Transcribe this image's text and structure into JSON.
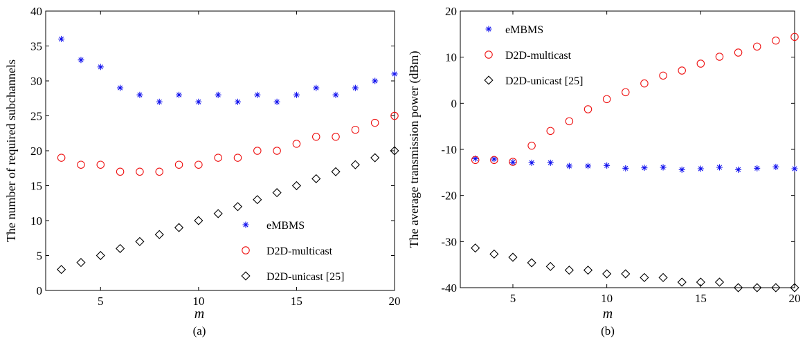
{
  "figure": {
    "caption_a": "(a)",
    "caption_b": "(b)"
  },
  "colors": {
    "embms": "#1010ee",
    "multicast": "#ee1010",
    "unicast": "#000000",
    "axis": "#000000",
    "background": "#ffffff"
  },
  "chart_data": [
    {
      "type": "scatter",
      "panel": "a",
      "xlabel": "m",
      "ylabel": "The number of required subchannels",
      "xlim": [
        2.2,
        20
      ],
      "ylim": [
        0,
        40
      ],
      "xticks": [
        5,
        10,
        15,
        20
      ],
      "yticks": [
        0,
        5,
        10,
        15,
        20,
        25,
        30,
        35,
        40
      ],
      "grid": false,
      "legend_position": "bottom-right",
      "x": [
        3,
        4,
        5,
        6,
        7,
        8,
        9,
        10,
        11,
        12,
        13,
        14,
        15,
        16,
        17,
        18,
        19,
        20
      ],
      "series": [
        {
          "name": "eMBMS",
          "marker": "asterisk",
          "color_key": "embms",
          "values": [
            36,
            33,
            32,
            29,
            28,
            27,
            28,
            27,
            28,
            27,
            28,
            27,
            28,
            29,
            28,
            29,
            30,
            31
          ]
        },
        {
          "name": "D2D-multicast",
          "marker": "circle",
          "color_key": "multicast",
          "values": [
            19,
            18,
            18,
            17,
            17,
            17,
            18,
            18,
            19,
            19,
            20,
            20,
            21,
            22,
            22,
            23,
            24,
            25
          ]
        },
        {
          "name": "D2D-unicast [25]",
          "marker": "diamond",
          "color_key": "unicast",
          "values": [
            3,
            4,
            5,
            6,
            7,
            8,
            9,
            10,
            11,
            12,
            13,
            14,
            15,
            16,
            17,
            18,
            19,
            20
          ]
        }
      ]
    },
    {
      "type": "scatter",
      "panel": "b",
      "xlabel": "m",
      "ylabel": "The average transmission power (dBm)",
      "xlim": [
        2.2,
        20
      ],
      "ylim": [
        -40,
        20
      ],
      "xticks": [
        5,
        10,
        15,
        20
      ],
      "yticks": [
        -40,
        -30,
        -20,
        -10,
        0,
        10,
        20
      ],
      "grid": false,
      "legend_position": "top-left",
      "x": [
        3,
        4,
        5,
        6,
        7,
        8,
        9,
        10,
        11,
        12,
        13,
        14,
        15,
        16,
        17,
        18,
        19,
        20
      ],
      "series": [
        {
          "name": "eMBMS",
          "marker": "asterisk",
          "color_key": "embms",
          "values": [
            -12.0,
            -12.1,
            -12.8,
            -12.9,
            -12.9,
            -13.6,
            -13.6,
            -13.5,
            -14.1,
            -14.0,
            -13.9,
            -14.4,
            -14.2,
            -13.9,
            -14.4,
            -14.1,
            -13.8,
            -14.2
          ]
        },
        {
          "name": "D2D-multicast",
          "marker": "circle",
          "color_key": "multicast",
          "values": [
            -12.3,
            -12.3,
            -12.7,
            -9.2,
            -6.0,
            -3.9,
            -1.3,
            0.9,
            2.4,
            4.3,
            6.0,
            7.1,
            8.6,
            10.1,
            11.0,
            12.3,
            13.6,
            14.4
          ]
        },
        {
          "name": "D2D-unicast [25]",
          "marker": "diamond",
          "color_key": "unicast",
          "values": [
            -31.4,
            -32.7,
            -33.4,
            -34.6,
            -35.4,
            -36.2,
            -36.2,
            -37.0,
            -37.0,
            -37.8,
            -37.8,
            -38.8,
            -38.8,
            -38.8,
            -40.0,
            -40.0,
            -40.0,
            -40.0
          ]
        }
      ]
    }
  ]
}
